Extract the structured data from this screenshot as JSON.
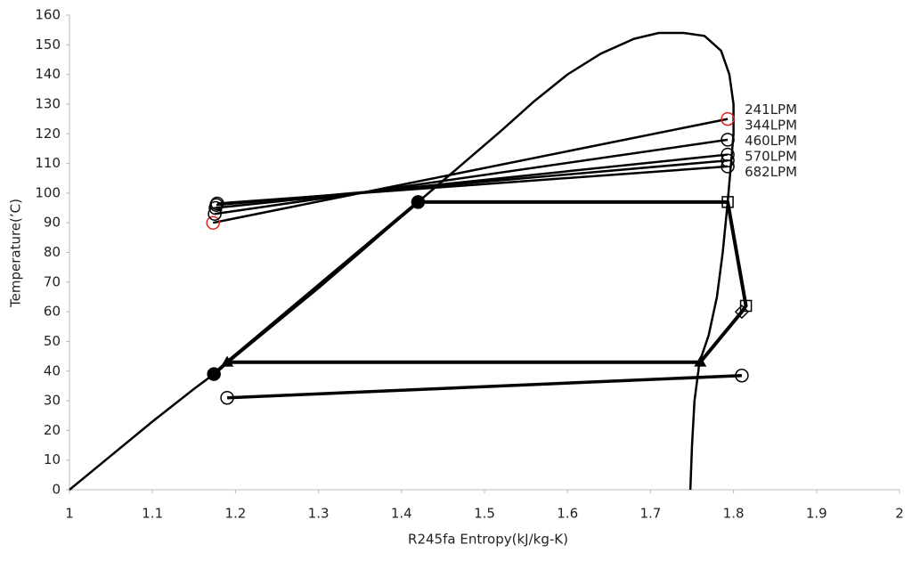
{
  "chart_data": {
    "type": "line",
    "xlabel": "R245fa Entropy(kJ/kg-K)",
    "ylabel": "Temperature(’C)",
    "xlim": [
      1,
      2
    ],
    "xticks": [
      1,
      1.1,
      1.2,
      1.3,
      1.4,
      1.5,
      1.6,
      1.7,
      1.8,
      1.9,
      2
    ],
    "ylim": [
      0,
      160
    ],
    "yticks": [
      0,
      10,
      20,
      30,
      40,
      50,
      60,
      70,
      80,
      90,
      100,
      110,
      120,
      130,
      140,
      150,
      160
    ],
    "grid": false,
    "series": [
      {
        "color": "#000000",
        "width": 2.5,
        "x": [
          1,
          1.05,
          1.1,
          1.15,
          1.174,
          1.2,
          1.25,
          1.3,
          1.35,
          1.42,
          1.47,
          1.52,
          1.56,
          1.6,
          1.64,
          1.68,
          1.71,
          1.74,
          1.765,
          1.785,
          1.795,
          1.8,
          1.8,
          1.797,
          1.793,
          1.787,
          1.78,
          1.77,
          1.759,
          1.753,
          1.75,
          1.748
        ],
        "y": [
          0,
          11.5,
          23,
          34,
          39,
          45,
          56.5,
          68,
          80,
          97,
          109,
          121,
          131,
          140,
          147,
          152,
          154,
          154,
          153,
          148,
          140,
          130,
          120,
          110,
          97,
          80,
          65,
          52,
          43,
          30,
          15,
          0
        ]
      },
      {
        "color": "#000000",
        "width": 4,
        "x": [
          1.174,
          1.19,
          1.42,
          1.793,
          1.815,
          1.81,
          1.76,
          1.19
        ],
        "y": [
          39,
          43,
          97,
          97,
          62,
          60,
          43,
          43
        ],
        "markers": [
          "circle-filled",
          "triangle",
          "circle-filled",
          "square",
          "square",
          "diamond",
          "triangle",
          "triangle"
        ]
      },
      {
        "color": "#000000",
        "width": 3.5,
        "x": [
          1.19,
          1.81
        ],
        "y": [
          31,
          38.5
        ],
        "markers": [
          "circle",
          "circle"
        ]
      },
      {
        "name": "241LPM",
        "color": "#000000",
        "marker_color": "#e02020",
        "width": 2.5,
        "x": [
          1.173,
          1.793
        ],
        "y": [
          90,
          125
        ],
        "markers": [
          "circle",
          "circle"
        ]
      },
      {
        "name": "344LPM",
        "color": "#000000",
        "width": 2.5,
        "x": [
          1.175,
          1.793
        ],
        "y": [
          93,
          118
        ],
        "markers": [
          "circle",
          "circle"
        ]
      },
      {
        "name": "460LPM",
        "color": "#000000",
        "width": 2.5,
        "x": [
          1.176,
          1.793
        ],
        "y": [
          95,
          113
        ],
        "markers": [
          "circle",
          "circle"
        ]
      },
      {
        "name": "570LPM",
        "color": "#000000",
        "width": 2.5,
        "x": [
          1.177,
          1.793
        ],
        "y": [
          96,
          111
        ],
        "markers": [
          "circle",
          "circle"
        ]
      },
      {
        "name": "682LPM",
        "color": "#000000",
        "width": 2.5,
        "x": [
          1.178,
          1.793
        ],
        "y": [
          96.5,
          109
        ],
        "markers": [
          "circle",
          "circle"
        ]
      }
    ]
  }
}
